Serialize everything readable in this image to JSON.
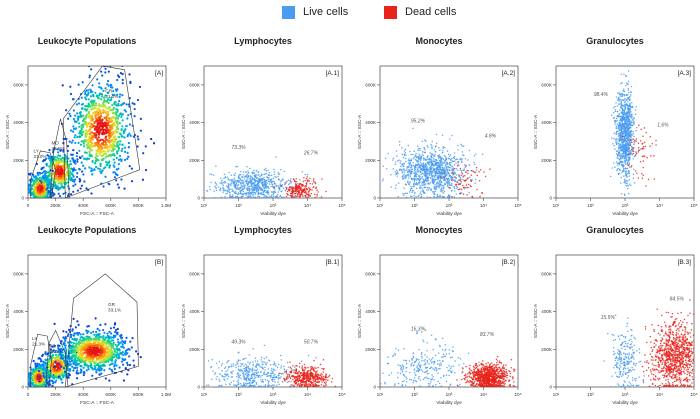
{
  "legend": {
    "live_label": "Live cells",
    "dead_label": "Dead cells",
    "live_color": "#4a9cf0",
    "dead_color": "#e8231b"
  },
  "chart_data": [
    {
      "type": "scatter",
      "subtype": "density",
      "id": "A",
      "row": 0,
      "col": 0,
      "title": "Leukocyte Populations",
      "panel_label": "[A]",
      "xlabel": "FSC-A :: FSC-A",
      "ylabel": "SSC-A :: SSC-A",
      "xlim": [
        0,
        1000
      ],
      "ylim": [
        0,
        700
      ],
      "xscale": "linear",
      "xticks": [
        0,
        200,
        400,
        600,
        800,
        1000
      ],
      "xticklabels": [
        "0",
        "200K",
        "400K",
        "600K",
        "800K",
        "1.0M"
      ],
      "yticks": [
        0,
        200,
        400,
        600
      ],
      "yticklabels": [
        "0",
        "200K",
        "400K",
        "600K"
      ],
      "gates": [
        {
          "name": "LY",
          "label": "LY",
          "pct": "21.0%",
          "label_pos": [
            40,
            240
          ],
          "polygon": [
            [
              20,
              0
            ],
            [
              170,
              0
            ],
            [
              200,
              150
            ],
            [
              160,
              240
            ],
            [
              90,
              250
            ],
            [
              20,
              100
            ]
          ]
        },
        {
          "name": "MO",
          "label": "MO",
          "pct": "38.5%",
          "label_pos": [
            170,
            285
          ],
          "polygon": [
            [
              160,
              0
            ],
            [
              300,
              0
            ],
            [
              280,
              300
            ],
            [
              235,
              420
            ],
            [
              185,
              240
            ]
          ]
        },
        {
          "name": "GR",
          "label": "GR",
          "pct": "31.0%",
          "label_pos": [
            560,
            560
          ],
          "polygon": [
            [
              270,
              0
            ],
            [
              810,
              150
            ],
            [
              700,
              680
            ],
            [
              540,
              700
            ],
            [
              255,
              420
            ]
          ]
        }
      ],
      "clusters": [
        {
          "cx": 90,
          "cy": 50,
          "sx": 45,
          "sy": 40,
          "n": 420
        },
        {
          "cx": 230,
          "cy": 140,
          "sx": 60,
          "sy": 55,
          "n": 380
        },
        {
          "cx": 530,
          "cy": 360,
          "sx": 110,
          "sy": 130,
          "n": 900
        }
      ]
    },
    {
      "type": "scatter",
      "id": "A.1",
      "row": 0,
      "col": 1,
      "title": "Lymphocytes",
      "panel_label": "[A.1]",
      "xlabel": "Viability dye",
      "ylabel": "SSC-A :: SSC-A",
      "xlim": [
        1,
        5
      ],
      "ylim": [
        0,
        700
      ],
      "xscale": "log",
      "xticks": [
        1,
        2,
        3,
        4,
        5
      ],
      "xticklabels": [
        "10¹",
        "10²",
        "10³",
        "10⁴",
        "10⁵"
      ],
      "yticks": [
        0,
        200,
        400,
        600
      ],
      "yticklabels": [
        "0",
        "200K",
        "400K",
        "600K"
      ],
      "annotations": [
        {
          "text": "73.3%",
          "x": 2.0,
          "y": 260
        },
        {
          "text": "26.7%",
          "x": 4.1,
          "y": 230
        }
      ],
      "series": [
        {
          "name": "Live cells",
          "color": "#4a9cf0",
          "cx": 2.4,
          "cy": 70,
          "sx": 0.55,
          "sy": 40,
          "n": 700
        },
        {
          "name": "Dead cells",
          "color": "#e8231b",
          "cx": 3.8,
          "cy": 45,
          "sx": 0.22,
          "sy": 25,
          "n": 220
        }
      ]
    },
    {
      "type": "scatter",
      "id": "A.2",
      "row": 0,
      "col": 2,
      "title": "Monocytes",
      "panel_label": "[A.2]",
      "xlabel": "Viability dye",
      "ylabel": "SSC-A :: SSC-A",
      "xlim": [
        1,
        5
      ],
      "ylim": [
        0,
        700
      ],
      "xscale": "log",
      "xticks": [
        1,
        2,
        3,
        4,
        5
      ],
      "xticklabels": [
        "10¹",
        "10²",
        "10³",
        "10⁴",
        "10⁵"
      ],
      "yticks": [
        0,
        200,
        400,
        600
      ],
      "yticklabels": [
        "0",
        "200K",
        "400K",
        "600K"
      ],
      "annotations": [
        {
          "text": "95.2%",
          "x": 2.1,
          "y": 400
        },
        {
          "text": "4.8%",
          "x": 4.2,
          "y": 320
        }
      ],
      "series": [
        {
          "name": "Live cells",
          "color": "#4a9cf0",
          "cx": 2.5,
          "cy": 140,
          "sx": 0.5,
          "sy": 65,
          "n": 1100
        },
        {
          "name": "Dead cells",
          "color": "#e8231b",
          "cx": 3.5,
          "cy": 95,
          "sx": 0.3,
          "sy": 45,
          "n": 70
        }
      ]
    },
    {
      "type": "scatter",
      "id": "A.3",
      "row": 0,
      "col": 3,
      "title": "Granulocytes",
      "panel_label": "[A.3]",
      "xlabel": "Viability dye",
      "ylabel": "SSC-A :: SSC-A",
      "xlim": [
        1,
        5
      ],
      "ylim": [
        0,
        700
      ],
      "xscale": "log",
      "xticks": [
        1,
        2,
        3,
        4,
        5
      ],
      "xticklabels": [
        "10¹",
        "10²",
        "10³",
        "10⁴",
        "10⁵"
      ],
      "yticks": [
        0,
        200,
        400,
        600
      ],
      "yticklabels": [
        "0",
        "200K",
        "400K",
        "600K"
      ],
      "annotations": [
        {
          "text": "98.4%",
          "x": 2.3,
          "y": 540
        },
        {
          "text": "1.6%",
          "x": 4.1,
          "y": 380
        }
      ],
      "series": [
        {
          "name": "Live cells",
          "color": "#4a9cf0",
          "cx": 3.0,
          "cy": 340,
          "sx": 0.13,
          "sy": 120,
          "n": 1000
        },
        {
          "name": "Dead cells",
          "color": "#e8231b",
          "cx": 3.45,
          "cy": 250,
          "sx": 0.25,
          "sy": 80,
          "n": 60
        }
      ]
    },
    {
      "type": "scatter",
      "subtype": "density",
      "id": "B",
      "row": 1,
      "col": 0,
      "title": "Leukocyte Populations",
      "panel_label": "[B]",
      "xlabel": "FSC-A :: FSC-A",
      "ylabel": "SSC-A :: SSC-A",
      "xlim": [
        0,
        1000
      ],
      "ylim": [
        0,
        700
      ],
      "xscale": "linear",
      "xticks": [
        0,
        200,
        400,
        600,
        800,
        1000
      ],
      "xticklabels": [
        "0",
        "200K",
        "400K",
        "600K",
        "800K",
        "1.0M"
      ],
      "yticks": [
        0,
        200,
        400,
        600
      ],
      "yticklabels": [
        "0",
        "200K",
        "400K",
        "600K"
      ],
      "gates": [
        {
          "name": "LY",
          "label": "LY",
          "pct": "21.3%",
          "label_pos": [
            30,
            250
          ],
          "polygon": [
            [
              20,
              0
            ],
            [
              150,
              0
            ],
            [
              170,
              140
            ],
            [
              140,
              270
            ],
            [
              70,
              280
            ],
            [
              20,
              120
            ]
          ]
        },
        {
          "name": "MO",
          "label": "MO",
          "pct": "40.0%",
          "label_pos": [
            150,
            210
          ],
          "polygon": [
            [
              130,
              0
            ],
            [
              290,
              0
            ],
            [
              270,
              180
            ],
            [
              200,
              300
            ],
            [
              150,
              230
            ]
          ]
        },
        {
          "name": "GR",
          "label": "GR",
          "pct": "33.1%",
          "label_pos": [
            580,
            430
          ],
          "polygon": [
            [
              270,
              0
            ],
            [
              800,
              110
            ],
            [
              790,
              450
            ],
            [
              560,
              600
            ],
            [
              330,
              470
            ]
          ]
        }
      ],
      "clusters": [
        {
          "cx": 80,
          "cy": 50,
          "sx": 40,
          "sy": 35,
          "n": 400
        },
        {
          "cx": 210,
          "cy": 110,
          "sx": 55,
          "sy": 45,
          "n": 360
        },
        {
          "cx": 480,
          "cy": 190,
          "sx": 120,
          "sy": 55,
          "n": 900
        }
      ]
    },
    {
      "type": "scatter",
      "id": "B.1",
      "row": 1,
      "col": 1,
      "title": "Lymphocytes",
      "panel_label": "[B.1]",
      "xlabel": "Viability dye",
      "ylabel": "SSC-A :: SSC-A",
      "xlim": [
        1,
        5
      ],
      "ylim": [
        0,
        700
      ],
      "xscale": "log",
      "xticks": [
        1,
        2,
        3,
        4,
        5
      ],
      "xticklabels": [
        "10¹",
        "10²",
        "10³",
        "10⁴",
        "10⁵"
      ],
      "yticks": [
        0,
        200,
        400,
        600
      ],
      "yticklabels": [
        "0",
        "200K",
        "400K",
        "600K"
      ],
      "annotations": [
        {
          "text": "49.3%",
          "x": 2.0,
          "y": 230
        },
        {
          "text": "50.7%",
          "x": 4.1,
          "y": 230
        }
      ],
      "series": [
        {
          "name": "Live cells",
          "color": "#4a9cf0",
          "cx": 2.4,
          "cy": 70,
          "sx": 0.55,
          "sy": 45,
          "n": 420
        },
        {
          "name": "Dead cells",
          "color": "#e8231b",
          "cx": 4.0,
          "cy": 50,
          "sx": 0.3,
          "sy": 30,
          "n": 430
        }
      ]
    },
    {
      "type": "scatter",
      "id": "B.2",
      "row": 1,
      "col": 2,
      "title": "Monocytes",
      "panel_label": "[B.2]",
      "xlabel": "Viability dye",
      "ylabel": "SSC-A :: SSC-A",
      "xlim": [
        1,
        5
      ],
      "ylim": [
        0,
        700
      ],
      "xscale": "log",
      "xticks": [
        1,
        2,
        3,
        4,
        5
      ],
      "xticklabels": [
        "10¹",
        "10²",
        "10³",
        "10⁴",
        "10⁵"
      ],
      "yticks": [
        0,
        200,
        400,
        600
      ],
      "yticklabels": [
        "0",
        "200K",
        "400K",
        "600K"
      ],
      "annotations": [
        {
          "text": "16.3%",
          "x": 2.1,
          "y": 300
        },
        {
          "text": "83.7%",
          "x": 4.1,
          "y": 270
        }
      ],
      "series": [
        {
          "name": "Live cells",
          "color": "#4a9cf0",
          "cx": 2.3,
          "cy": 110,
          "sx": 0.55,
          "sy": 70,
          "n": 260
        },
        {
          "name": "Dead cells",
          "color": "#e8231b",
          "cx": 4.15,
          "cy": 50,
          "sx": 0.28,
          "sy": 35,
          "n": 900
        }
      ]
    },
    {
      "type": "scatter",
      "id": "B.3",
      "row": 1,
      "col": 3,
      "title": "Granulocytes",
      "panel_label": "[B.3]",
      "xlabel": "Viability dye",
      "ylabel": "SSC-A :: SSC-A",
      "xlim": [
        1,
        5
      ],
      "ylim": [
        0,
        700
      ],
      "xscale": "log",
      "xticks": [
        1,
        2,
        3,
        4,
        5
      ],
      "xticklabels": [
        "10¹",
        "10²",
        "10³",
        "10⁴",
        "10⁵"
      ],
      "yticks": [
        0,
        200,
        400,
        600
      ],
      "yticklabels": [
        "0",
        "200K",
        "400K",
        "600K"
      ],
      "annotations": [
        {
          "text": "15.5%",
          "x": 2.5,
          "y": 360
        },
        {
          "text": "84.5%",
          "x": 4.5,
          "y": 460
        }
      ],
      "series": [
        {
          "name": "Live cells",
          "color": "#4a9cf0",
          "cx": 3.0,
          "cy": 150,
          "sx": 0.2,
          "sy": 80,
          "n": 220
        },
        {
          "name": "Dead cells",
          "color": "#e8231b",
          "cx": 4.45,
          "cy": 160,
          "sx": 0.35,
          "sy": 85,
          "n": 950
        }
      ]
    }
  ]
}
